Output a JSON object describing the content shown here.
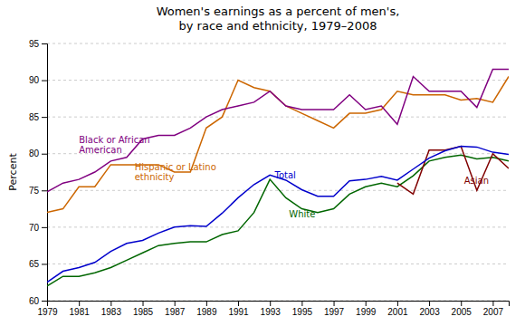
{
  "chart_data": {
    "type": "line",
    "title": "Women's earnings as a percent of men's,\nby race and ethnicity, 1979–2008",
    "ylabel": "Percent",
    "x": [
      1979,
      1980,
      1981,
      1982,
      1983,
      1984,
      1985,
      1986,
      1987,
      1988,
      1989,
      1990,
      1991,
      1992,
      1993,
      1994,
      1995,
      1996,
      1997,
      1998,
      1999,
      2000,
      2001,
      2002,
      2003,
      2004,
      2005,
      2006,
      2007,
      2008
    ],
    "series": [
      {
        "color": "#cc6600",
        "values": [
          72.0,
          72.5,
          75.5,
          75.5,
          78.5,
          78.5,
          78.5,
          78.5,
          77.5,
          77.5,
          83.5,
          85.0,
          90.0,
          89.0,
          88.5,
          86.5,
          85.5,
          84.5,
          83.5,
          85.5,
          85.5,
          86.0,
          88.5,
          88.0,
          88.0,
          88.0,
          87.3,
          87.5,
          87.0,
          90.5
        ]
      },
      {
        "color": "#800080",
        "values": [
          74.8,
          76.0,
          76.5,
          77.5,
          79.0,
          79.5,
          82.0,
          82.5,
          82.5,
          83.5,
          85.0,
          86.0,
          86.5,
          87.0,
          88.5,
          86.5,
          86.0,
          86.0,
          86.0,
          88.0,
          86.0,
          86.5,
          84.0,
          90.5,
          88.5,
          88.5,
          88.5,
          86.3,
          91.5,
          91.5
        ]
      },
      {
        "color": "#006600",
        "values": [
          62.0,
          63.3,
          63.3,
          63.8,
          64.5,
          65.5,
          66.5,
          67.5,
          67.8,
          68.0,
          68.0,
          69.0,
          69.5,
          72.0,
          76.5,
          74.0,
          72.5,
          72.0,
          72.5,
          74.5,
          75.5,
          76.0,
          75.5,
          77.0,
          79.0,
          79.5,
          79.8,
          79.3,
          79.5,
          79.0
        ]
      },
      {
        "color": "#800000",
        "values": [
          null,
          null,
          null,
          null,
          null,
          null,
          null,
          null,
          null,
          null,
          null,
          null,
          null,
          null,
          null,
          null,
          null,
          null,
          null,
          null,
          null,
          null,
          76.0,
          74.5,
          80.5,
          80.5,
          81.0,
          75.0,
          80.0,
          78.0
        ]
      },
      {
        "color": "#0000cc",
        "values": [
          62.5,
          64.0,
          64.5,
          65.2,
          66.7,
          67.8,
          68.2,
          69.2,
          70.0,
          70.2,
          70.1,
          71.9,
          74.0,
          75.8,
          77.1,
          76.4,
          75.1,
          74.2,
          74.2,
          76.3,
          76.5,
          76.9,
          76.4,
          77.9,
          79.4,
          80.4,
          81.0,
          80.9,
          80.2,
          79.9
        ]
      }
    ],
    "annotations": [
      {
        "text": "Black or African\nAmerican",
        "x": 1981.0,
        "y": 82.5,
        "color": "#800080"
      },
      {
        "text": "Hispanic or Latino\nethnicity",
        "x": 1984.5,
        "y": 78.8,
        "color": "#cc6600"
      },
      {
        "text": "Total",
        "x": 1993.3,
        "y": 77.8,
        "color": "#0000cc"
      },
      {
        "text": "White",
        "x": 1994.2,
        "y": 72.5,
        "color": "#006600"
      },
      {
        "text": "Asian",
        "x": 2005.2,
        "y": 77.0,
        "color": "#800000"
      }
    ],
    "xlim": [
      1979,
      2008
    ],
    "xticks": [
      1979,
      1981,
      1983,
      1985,
      1987,
      1989,
      1991,
      1993,
      1995,
      1997,
      1999,
      2001,
      2003,
      2005,
      2007
    ],
    "ylim": [
      60,
      95
    ],
    "yticks": [
      60,
      65,
      70,
      75,
      80,
      85,
      90,
      95
    ],
    "grid": true
  }
}
